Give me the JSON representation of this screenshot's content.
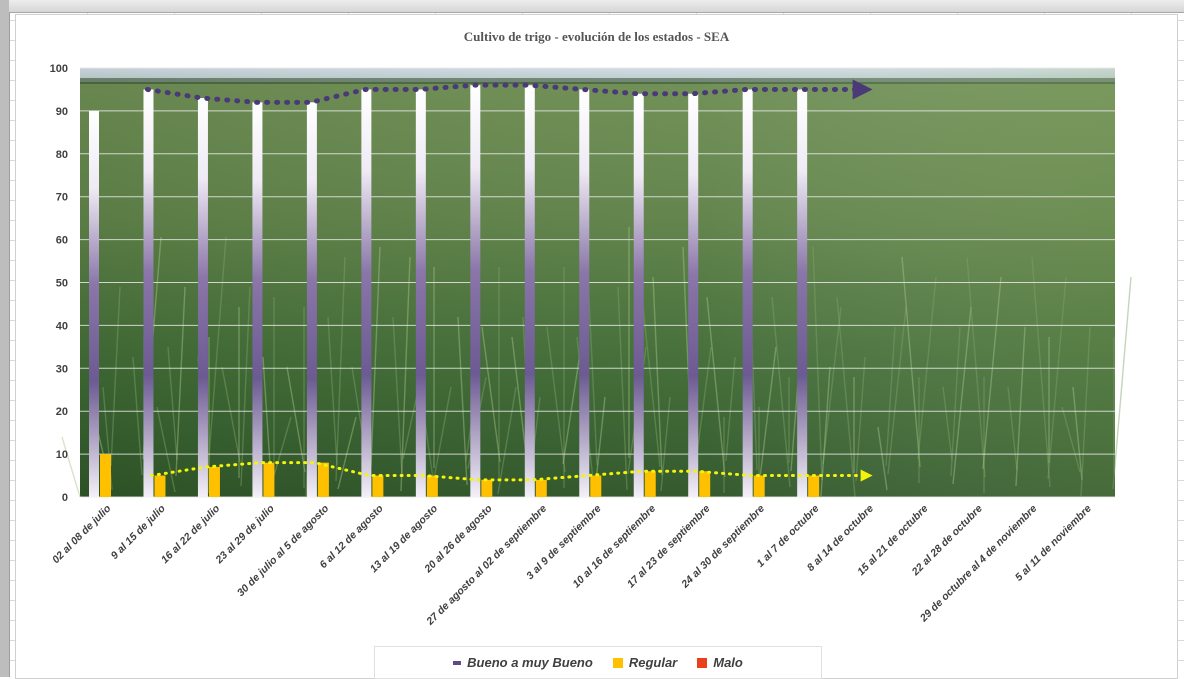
{
  "chart_data": {
    "type": "bar",
    "title": "Cultivo de trigo - evolución de los estados - SEA",
    "categories": [
      "02 al 08 de julio",
      "9 al 15 de julio",
      "16 al 22 de julio",
      "23 al 29 de julio",
      "30 de julio al 5 de agosto",
      "6 al 12 de agosto",
      "13 al 19 de agosto",
      "20 al 26 de agosto",
      "27 de agosto al 02 de septiembre",
      "3 al 9 de septiembre",
      "10 al 16 de septiembre",
      "17 al 23 de septiembre",
      "24 al 30 de septiembre",
      "1 al 7 de octubre",
      "8 al 14 de octubre",
      "15 al 21 de octubre",
      "22 al 28 de octubre",
      "29 de octubre al 4 de noviembre",
      "5 al 11 de noviembre"
    ],
    "series": [
      {
        "name": "Bueno a muy Bueno",
        "color": "#5e4a86",
        "values": [
          90,
          95,
          93,
          92,
          92,
          95,
          95,
          96,
          96,
          95,
          94,
          94,
          95,
          95,
          null,
          null,
          null,
          null,
          null
        ]
      },
      {
        "name": "Regular",
        "color": "#ffc000",
        "values": [
          10,
          5,
          7,
          8,
          8,
          5,
          5,
          4,
          4,
          5,
          6,
          6,
          5,
          5,
          null,
          null,
          null,
          null,
          null
        ]
      },
      {
        "name": "Malo",
        "color": "#e8411b",
        "values": [
          0,
          0,
          0,
          0,
          0,
          0,
          0,
          0,
          0,
          0,
          0,
          0,
          0,
          0,
          null,
          null,
          null,
          null,
          null
        ]
      }
    ],
    "ylim": [
      0,
      100
    ],
    "yticks": [
      "0",
      "10",
      "20",
      "30",
      "40",
      "50",
      "60",
      "70",
      "80",
      "90",
      "100"
    ],
    "grid": true,
    "legend_position": "bottom",
    "trendline_colors": {
      "bueno": "#4a3a78",
      "regular": "#f4f40a"
    }
  }
}
